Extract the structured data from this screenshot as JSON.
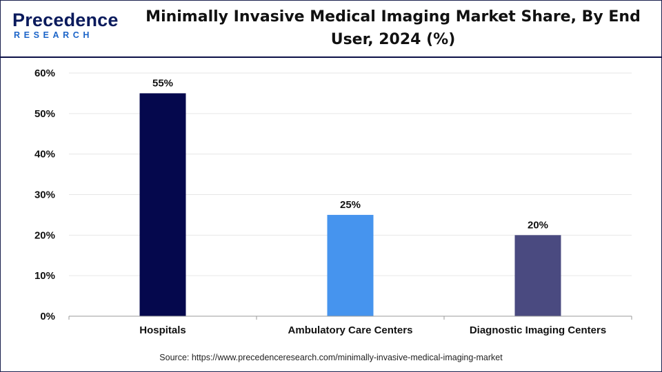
{
  "brand": {
    "logo_main": "Precedence",
    "logo_sub": "RESEARCH"
  },
  "colors": {
    "hospitals": "#05084d",
    "ambulatory": "#4694ee",
    "diagnostic": "#4a4a80",
    "gridline": "#e6e6e6",
    "axis": "#9a9a9a"
  },
  "chart_data": {
    "type": "bar",
    "title": "Minimally Invasive Medical Imaging Market Share, By End User, 2024 (%)",
    "categories": [
      "Hospitals",
      "Ambulatory Care Centers",
      "Diagnostic Imaging Centers"
    ],
    "values": [
      55,
      25,
      20
    ],
    "data_labels": [
      "55%",
      "25%",
      "20%"
    ],
    "bar_colors": [
      "#05084d",
      "#4694ee",
      "#4a4a80"
    ],
    "ylim": [
      0,
      60
    ],
    "yticks": [
      0,
      10,
      20,
      30,
      40,
      50,
      60
    ],
    "ytick_labels": [
      "0%",
      "10%",
      "20%",
      "30%",
      "40%",
      "50%",
      "60%"
    ],
    "grid": true,
    "legend": "none"
  },
  "source": "Source: https://www.precedenceresearch.com/minimally-invasive-medical-imaging-market"
}
